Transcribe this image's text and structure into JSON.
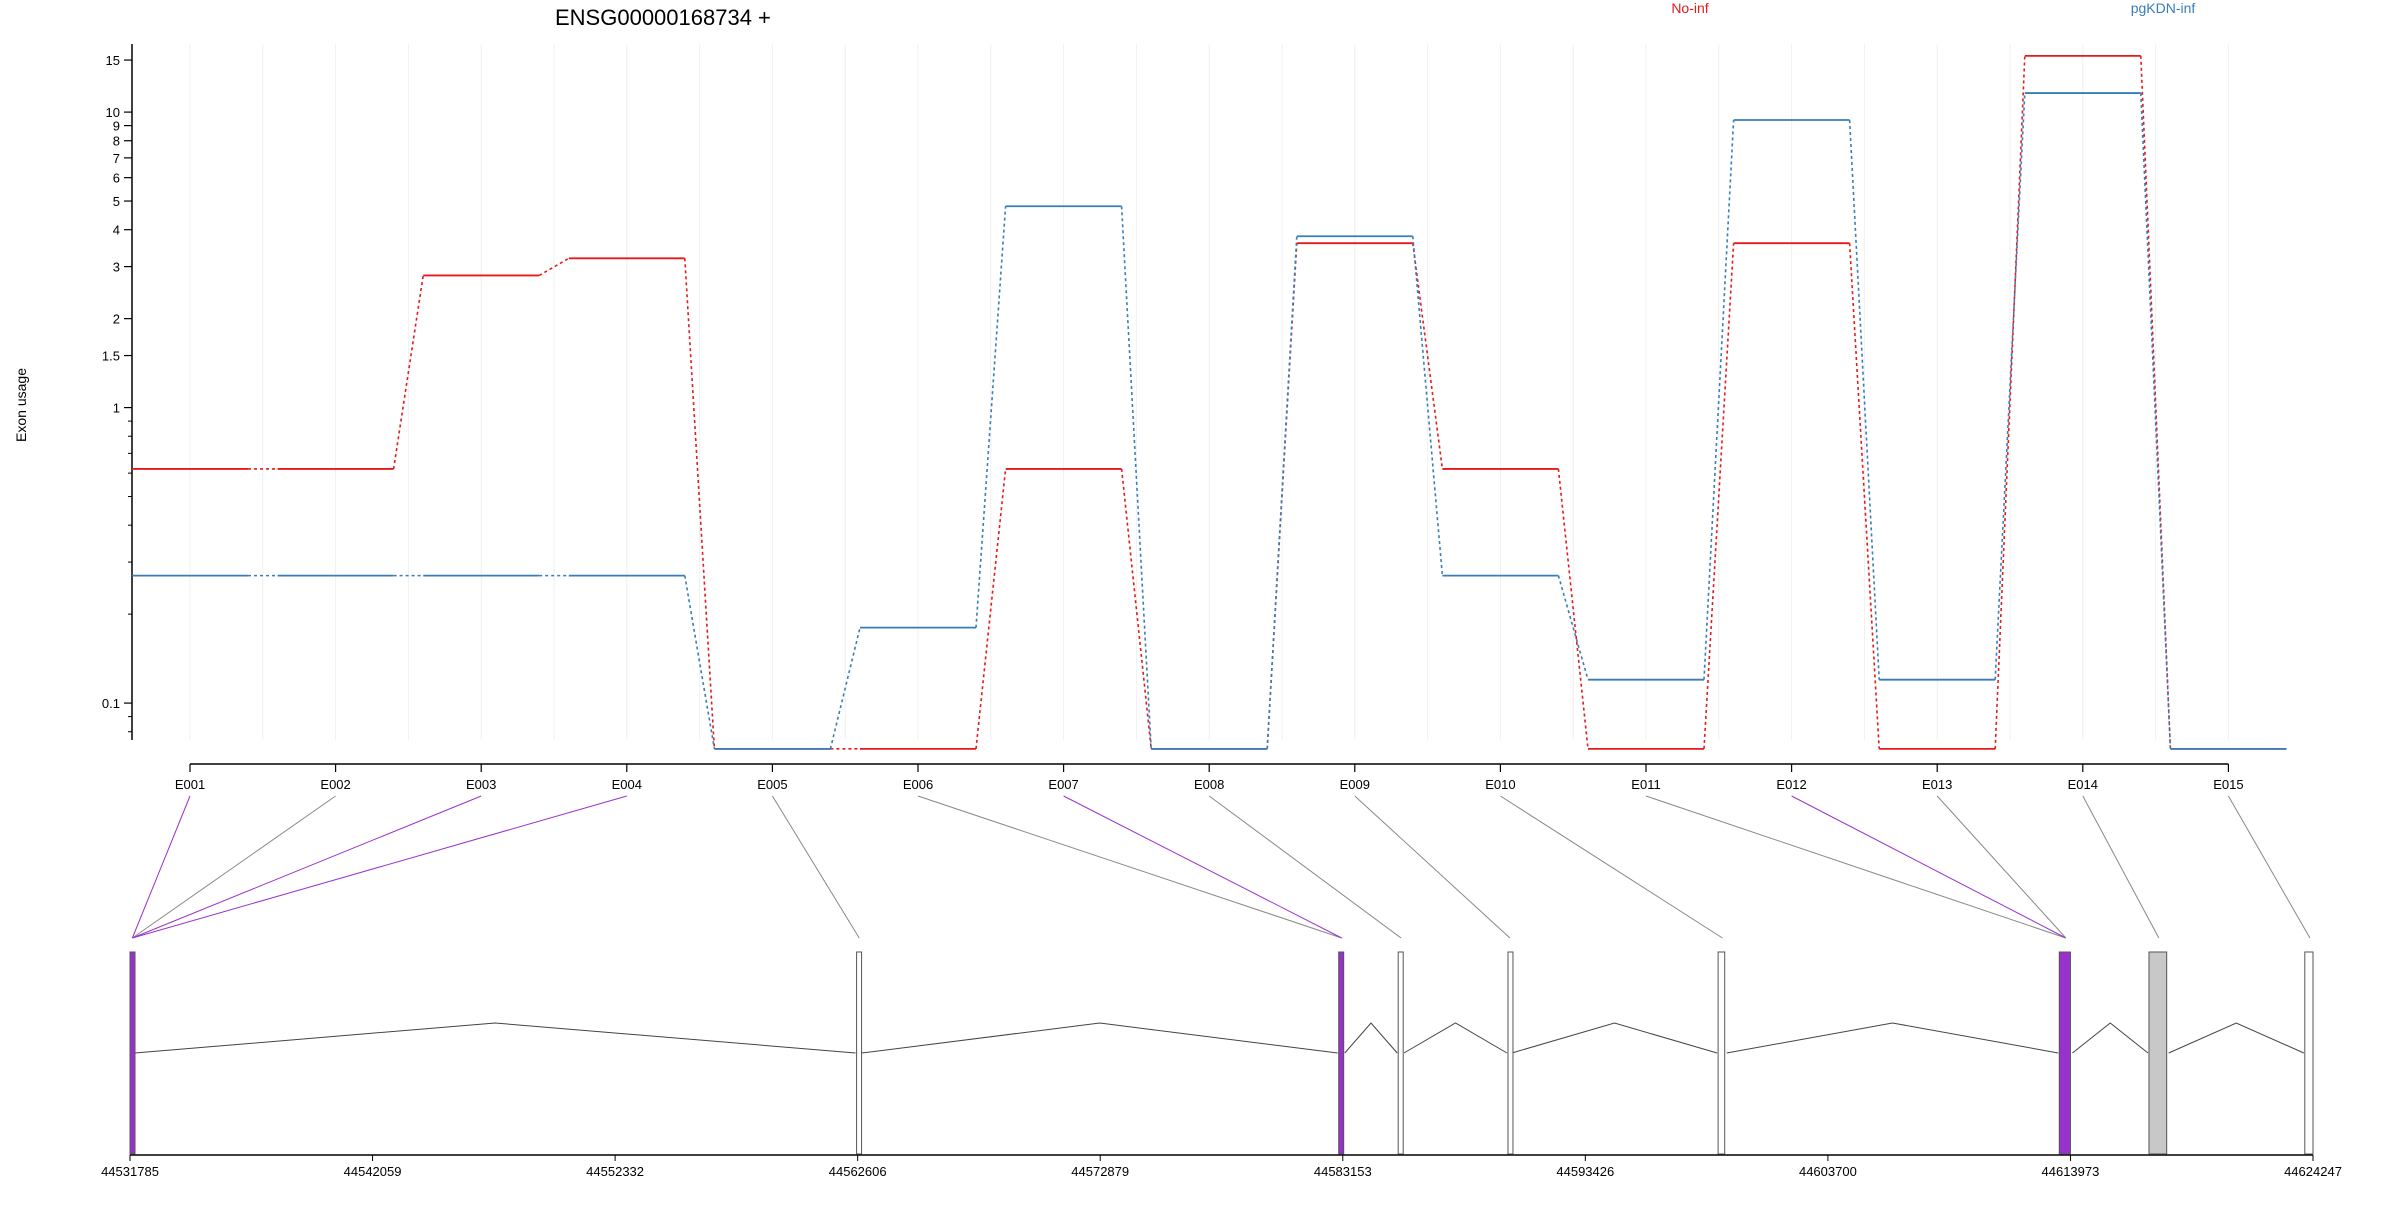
{
  "chart_data": {
    "type": "line",
    "title": "ENSG00000168734 +",
    "ylabel": "Exon usage",
    "y_scale": "log",
    "ylim": [
      0.075,
      17
    ],
    "y_ticks": [
      0.1,
      1,
      1.5,
      2,
      3,
      4,
      5,
      6,
      7,
      8,
      9,
      10,
      15
    ],
    "y_tick_labels": [
      "0.1",
      "1",
      "1.5",
      "2",
      "3",
      "4",
      "5",
      "6",
      "7",
      "8",
      "9",
      "10",
      "15"
    ],
    "grid": "vertical",
    "legend_position": "top-right",
    "categories": [
      "E001",
      "E002",
      "E003",
      "E004",
      "E005",
      "E006",
      "E007",
      "E008",
      "E009",
      "E010",
      "E011",
      "E012",
      "E013",
      "E014",
      "E015"
    ],
    "series": [
      {
        "name": "No-inf",
        "color": "#e41a1c",
        "values": [
          0.62,
          0.62,
          2.8,
          3.2,
          0.07,
          0.07,
          0.62,
          0.07,
          3.6,
          0.62,
          0.07,
          3.6,
          0.07,
          15.5,
          0.07
        ]
      },
      {
        "name": "pgKDN-inf",
        "color": "#377eb8",
        "values": [
          0.27,
          0.27,
          0.27,
          0.27,
          0.07,
          0.18,
          4.8,
          0.07,
          3.8,
          0.27,
          0.12,
          9.4,
          0.12,
          11.6,
          0.07
        ]
      }
    ],
    "gene_model": {
      "coordinates": [
        "44531785",
        "44542059",
        "44552332",
        "44562606",
        "44572879",
        "44583153",
        "44593426",
        "44603700",
        "44613973",
        "44624247"
      ],
      "coord_start": 44531785,
      "coord_end": 44624247,
      "highlight_color": "#9932cc",
      "exons": [
        {
          "id": "E001",
          "start": 44531785,
          "end": 44531900,
          "highlight": true
        },
        {
          "id": "E002",
          "start": 44531785,
          "end": 44531900,
          "highlight": false
        },
        {
          "id": "E003",
          "start": 44531785,
          "end": 44531900,
          "highlight": true
        },
        {
          "id": "E004",
          "start": 44531785,
          "end": 44531900,
          "highlight": true
        },
        {
          "id": "E005",
          "start": 44562560,
          "end": 44562700,
          "highlight": false
        },
        {
          "id": "E006",
          "start": 44582980,
          "end": 44583153,
          "highlight": false
        },
        {
          "id": "E007",
          "start": 44582980,
          "end": 44583153,
          "highlight": true
        },
        {
          "id": "E008",
          "start": 44585500,
          "end": 44585660,
          "highlight": false
        },
        {
          "id": "E009",
          "start": 44590150,
          "end": 44590230,
          "highlight": false
        },
        {
          "id": "E010",
          "start": 44599050,
          "end": 44599330,
          "highlight": false
        },
        {
          "id": "E011",
          "start": 44613500,
          "end": 44613973,
          "highlight": false
        },
        {
          "id": "E012",
          "start": 44613500,
          "end": 44613973,
          "highlight": true
        },
        {
          "id": "E013",
          "start": 44613500,
          "end": 44613973,
          "highlight": false
        },
        {
          "id": "E014",
          "start": 44617300,
          "end": 44618050,
          "highlight": false
        },
        {
          "id": "E015",
          "start": 44623900,
          "end": 44624247,
          "highlight": false
        }
      ]
    }
  }
}
